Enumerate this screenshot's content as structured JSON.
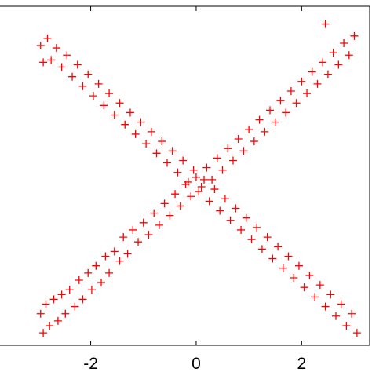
{
  "chart_data": {
    "type": "scatter",
    "color": "#ff0000",
    "marker": "+",
    "xlim": [
      -3.72,
      3.29
    ],
    "ylim": [
      -3.36,
      3.72
    ],
    "xticks": [
      -2,
      0,
      2
    ],
    "x": [
      -2.95,
      -2.9,
      -2.85,
      -2.78,
      -2.7,
      -2.62,
      -2.55,
      -2.48,
      -2.4,
      -2.3,
      -2.22,
      -2.15,
      -2.05,
      -1.98,
      -1.9,
      -1.8,
      -1.72,
      -1.65,
      -1.55,
      -1.45,
      -1.38,
      -1.3,
      -1.2,
      -1.1,
      -1.0,
      -0.9,
      -0.8,
      -0.7,
      -0.6,
      -0.5,
      -0.4,
      -0.3,
      -0.2,
      -0.1,
      0.0,
      0.1,
      0.2,
      0.3,
      0.4,
      0.5,
      0.6,
      0.7,
      0.8,
      0.9,
      1.0,
      1.1,
      1.2,
      1.3,
      1.4,
      1.5,
      1.6,
      1.7,
      1.8,
      1.9,
      2.0,
      2.1,
      2.2,
      2.3,
      2.4,
      2.5,
      2.6,
      2.7,
      2.8,
      2.9,
      3.0,
      2.45,
      -2.95,
      -2.9,
      -2.82,
      -2.75,
      -2.65,
      -2.55,
      -2.45,
      -2.35,
      -2.25,
      -2.15,
      -2.05,
      -1.95,
      -1.85,
      -1.75,
      -1.65,
      -1.55,
      -1.45,
      -1.35,
      -1.25,
      -1.15,
      -1.05,
      -0.95,
      -0.85,
      -0.75,
      -0.65,
      -0.55,
      -0.45,
      -0.35,
      -0.25,
      -0.15,
      -0.05,
      0.05,
      0.15,
      0.25,
      0.35,
      0.45,
      0.55,
      0.65,
      0.75,
      0.85,
      0.95,
      1.05,
      1.15,
      1.25,
      1.35,
      1.45,
      1.55,
      1.65,
      1.75,
      1.85,
      1.95,
      2.05,
      2.15,
      2.25,
      2.35,
      2.45,
      2.55,
      2.65,
      2.75,
      2.85,
      2.95,
      3.05
    ],
    "values": [
      -2.7,
      -3.1,
      -2.5,
      -2.95,
      -2.4,
      -2.85,
      -2.3,
      -2.7,
      -2.2,
      -2.55,
      -2.0,
      -2.4,
      -1.85,
      -2.2,
      -1.7,
      -2.05,
      -1.5,
      -1.85,
      -1.4,
      -1.6,
      -1.1,
      -1.45,
      -0.95,
      -1.2,
      -0.8,
      -1.05,
      -0.6,
      -0.85,
      -0.4,
      -0.65,
      -0.2,
      -0.45,
      0.0,
      -0.25,
      0.15,
      -0.05,
      0.35,
      0.1,
      0.55,
      0.3,
      0.75,
      0.5,
      0.95,
      0.7,
      1.15,
      0.9,
      1.35,
      1.1,
      1.55,
      1.3,
      1.75,
      1.5,
      1.95,
      1.7,
      2.15,
      1.9,
      2.35,
      2.1,
      2.55,
      2.3,
      2.75,
      2.5,
      2.95,
      2.7,
      3.1,
      3.35,
      2.9,
      2.55,
      3.05,
      2.6,
      2.85,
      2.45,
      2.7,
      2.25,
      2.5,
      2.05,
      2.3,
      1.85,
      2.1,
      1.65,
      1.9,
      1.45,
      1.7,
      1.25,
      1.5,
      1.05,
      1.3,
      0.85,
      1.1,
      0.65,
      0.9,
      0.45,
      0.7,
      0.25,
      0.5,
      0.05,
      0.3,
      -0.15,
      0.1,
      -0.35,
      -0.1,
      -0.55,
      -0.3,
      -0.75,
      -0.5,
      -0.95,
      -0.7,
      -1.15,
      -0.9,
      -1.35,
      -1.1,
      -1.55,
      -1.3,
      -1.75,
      -1.5,
      -1.95,
      -1.7,
      -2.15,
      -1.9,
      -2.35,
      -2.1,
      -2.55,
      -2.3,
      -2.75,
      -2.5,
      -2.95,
      -2.7,
      -3.1
    ]
  }
}
